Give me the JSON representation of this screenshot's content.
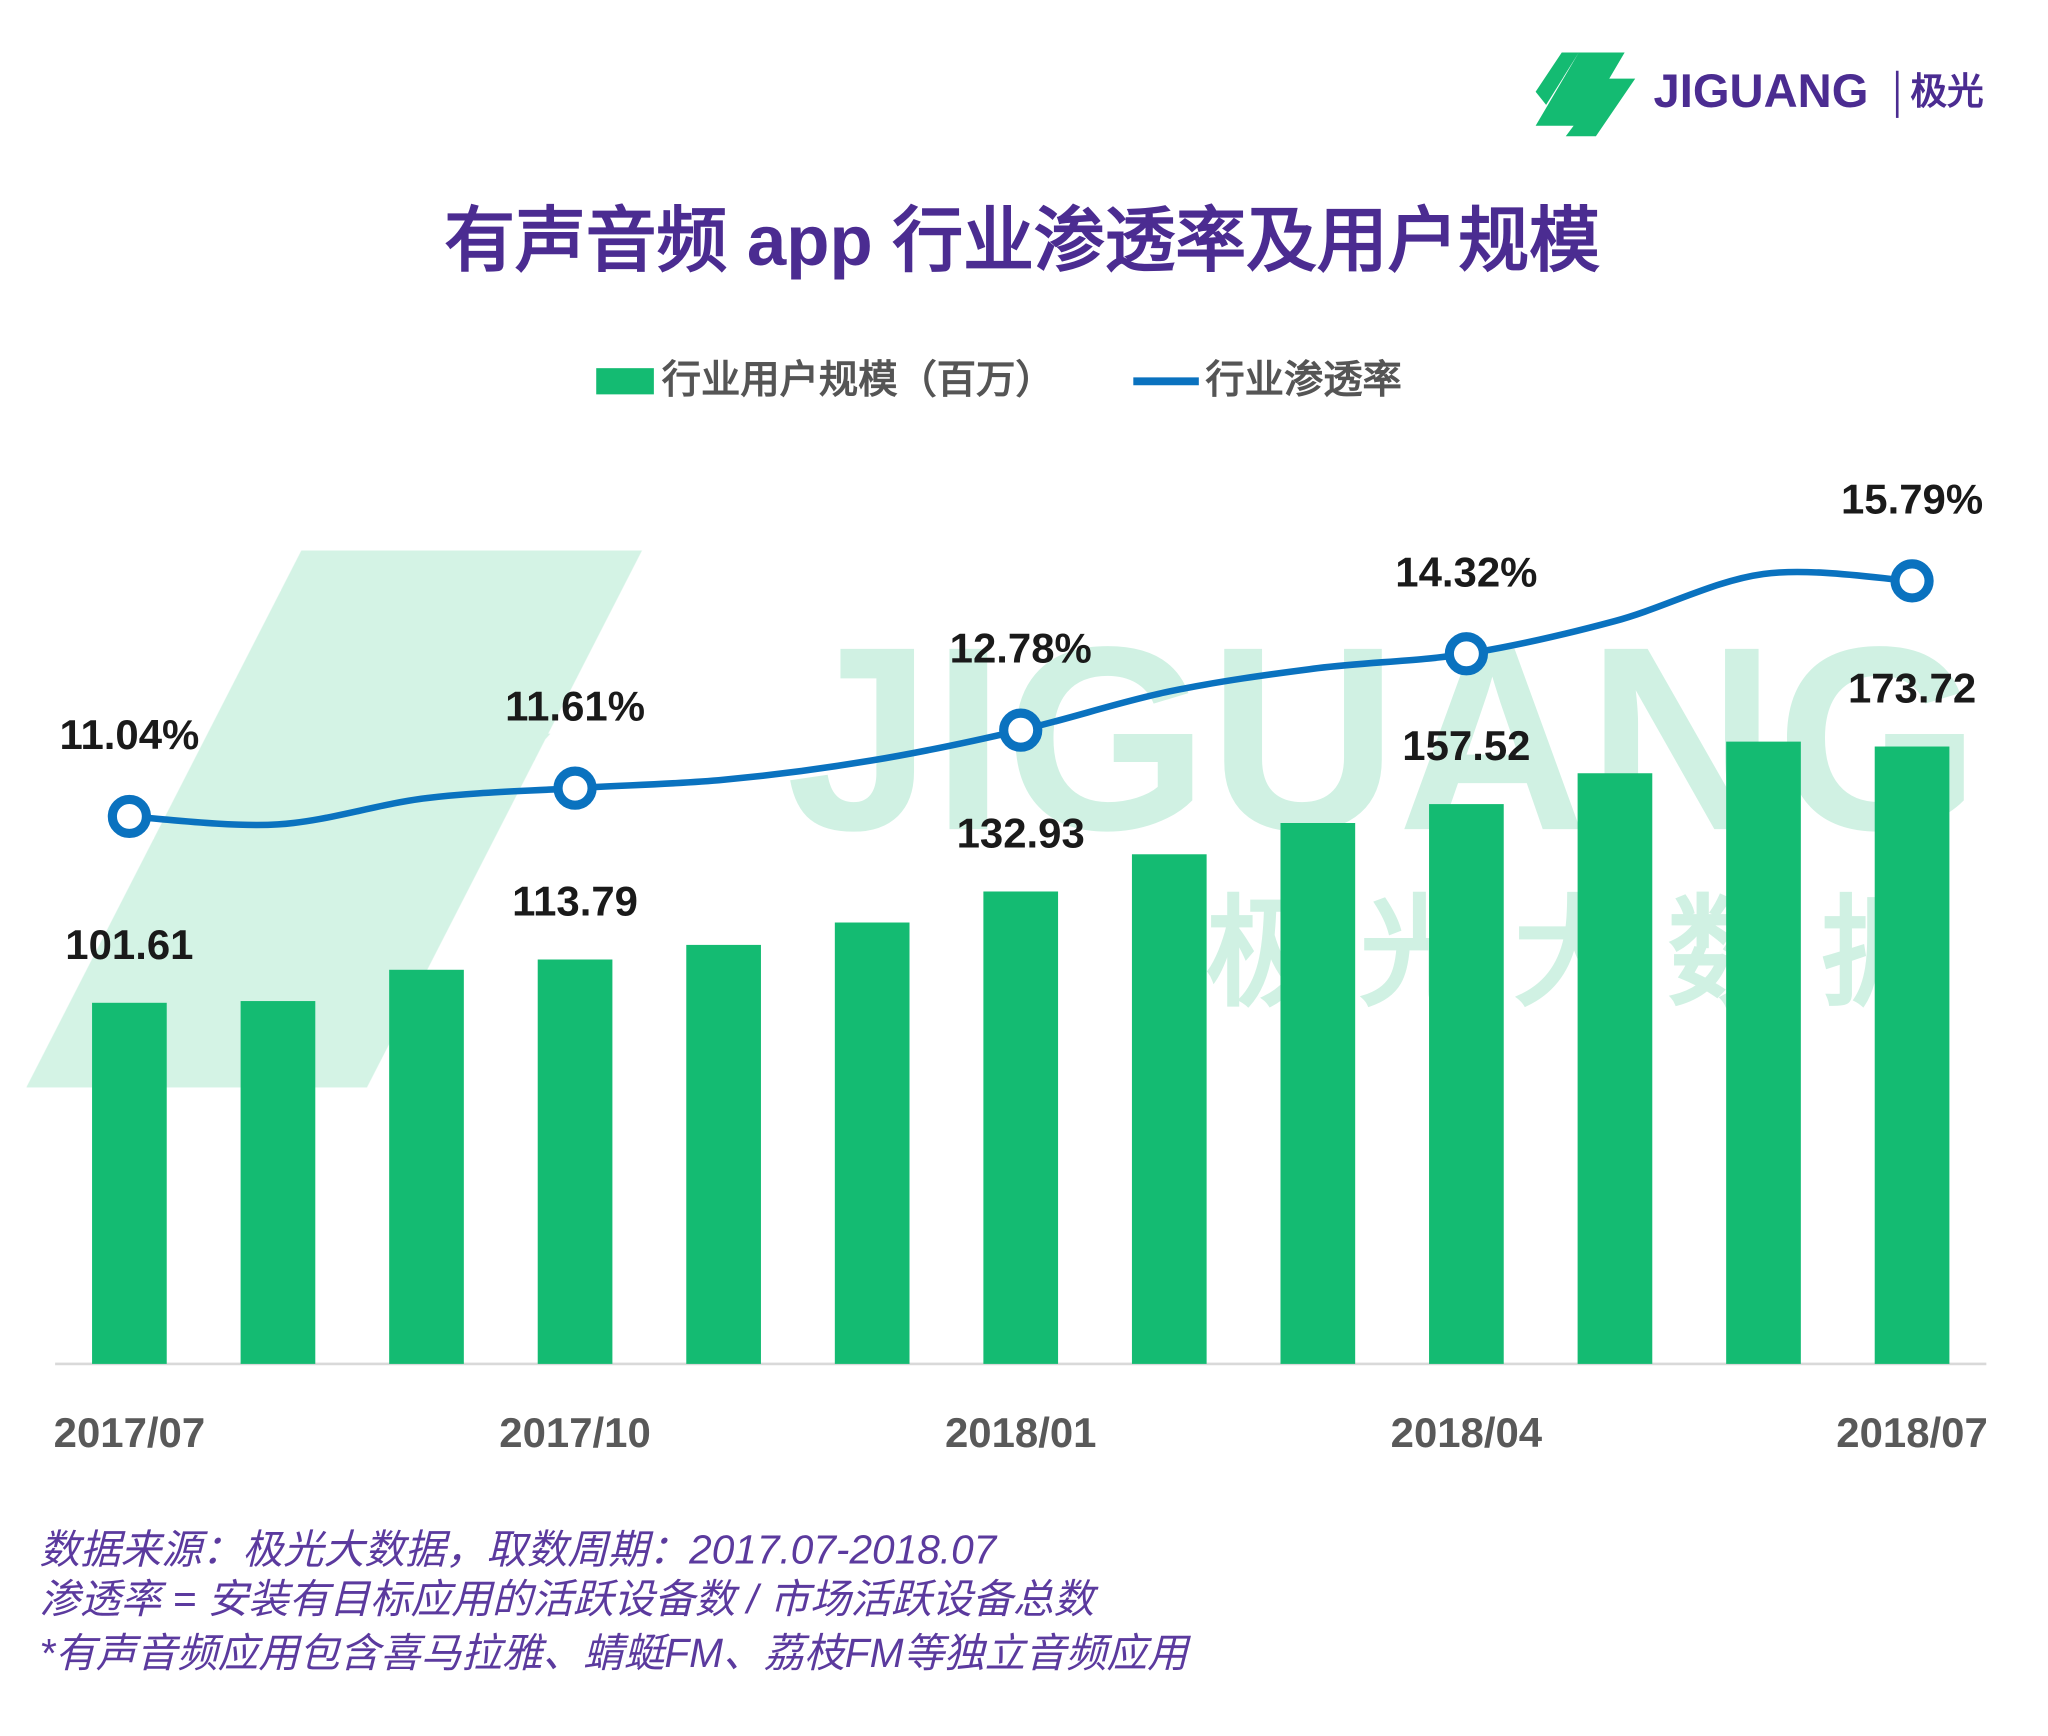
{
  "logo": {
    "name": "JIGUANG",
    "cn": "极光"
  },
  "watermark": {
    "name": "JIGUANG",
    "cn": "极 光 大 数 据"
  },
  "chart_data": {
    "type": "bar-line",
    "title": "有声音频 app 行业渗透率及用户规模",
    "categories": [
      "2017/07",
      null,
      null,
      "2017/10",
      null,
      null,
      "2018/01",
      null,
      null,
      "2018/04",
      null,
      null,
      "2018/07"
    ],
    "series": [
      {
        "name": "行业用户规模（百万）",
        "type": "bar",
        "color": "#14bb72",
        "values": [
          101.61,
          102.1,
          110.9,
          113.79,
          117.9,
          124.2,
          132.93,
          143.4,
          152.2,
          157.52,
          166.2,
          175.1,
          173.72
        ],
        "value_labels": [
          "101.61",
          null,
          null,
          "113.79",
          null,
          null,
          "132.93",
          null,
          null,
          "157.52",
          null,
          null,
          "173.72"
        ]
      },
      {
        "name": "行业渗透率",
        "type": "line",
        "color": "#0a72bf",
        "axis": "y2",
        "values": [
          11.04,
          10.88,
          11.41,
          11.61,
          11.78,
          12.17,
          12.78,
          13.56,
          14.03,
          14.32,
          14.98,
          15.93,
          15.79
        ],
        "value_labels": [
          "11.04%",
          null,
          null,
          "11.61%",
          null,
          null,
          "12.78%",
          null,
          null,
          "14.32%",
          null,
          null,
          "15.79%"
        ]
      }
    ],
    "ylim": [
      0,
      240
    ],
    "y2lim": [
      0,
      17.2
    ],
    "notes": [
      "数据来源：极光大数据，取数周期：2017.07-2018.07",
      "渗透率 = 安装有目标应用的活跃设备数 / 市场活跃设备总数",
      " *有声音频应用包含喜马拉雅、蜻蜓FM、荔枝FM等独立音频应用"
    ]
  }
}
